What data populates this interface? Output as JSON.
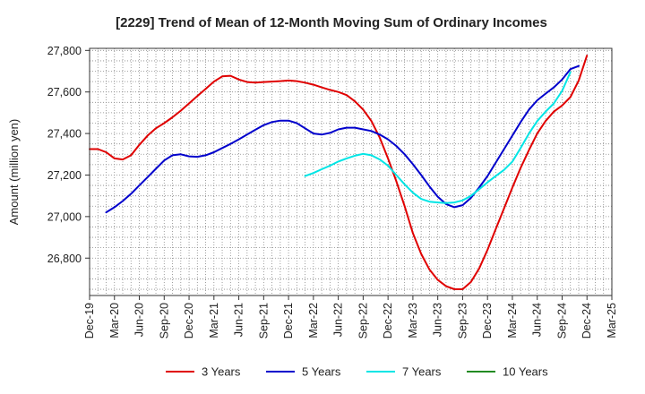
{
  "chart_data": {
    "type": "line",
    "title": "[2229]  Trend of Mean of 12-Month Moving Sum of Ordinary Incomes",
    "xlabel": "",
    "ylabel": "Amount (million yen)",
    "ylim": [
      26620,
      27810
    ],
    "yticks": [
      26800,
      27000,
      27200,
      27400,
      27600,
      27800
    ],
    "ytick_labels": [
      "26,800",
      "27,000",
      "27,200",
      "27,400",
      "27,600",
      "27,800"
    ],
    "x_start": "Dec-19",
    "x_range": [
      0,
      63
    ],
    "xticks": [
      0,
      3,
      6,
      9,
      12,
      15,
      18,
      21,
      24,
      27,
      30,
      33,
      36,
      39,
      42,
      45,
      48,
      51,
      54,
      57,
      60,
      63
    ],
    "xtick_labels": [
      "Dec-19",
      "Mar-20",
      "Jun-20",
      "Sep-20",
      "Dec-20",
      "Mar-21",
      "Jun-21",
      "Sep-21",
      "Dec-21",
      "Mar-22",
      "Jun-22",
      "Sep-22",
      "Dec-22",
      "Mar-23",
      "Jun-23",
      "Sep-23",
      "Dec-23",
      "Mar-24",
      "Jun-24",
      "Sep-24",
      "Dec-24",
      "Mar-25"
    ],
    "grid": true,
    "legend_position": "bottom",
    "series": [
      {
        "name": "3 Years",
        "color": "#e00000",
        "x_start": 0,
        "values": [
          27325,
          27325,
          27310,
          27280,
          27275,
          27295,
          27345,
          27390,
          27425,
          27450,
          27478,
          27510,
          27545,
          27580,
          27615,
          27650,
          27675,
          27678,
          27660,
          27648,
          27645,
          27648,
          27650,
          27652,
          27655,
          27652,
          27645,
          27635,
          27622,
          27610,
          27600,
          27585,
          27555,
          27515,
          27460,
          27380,
          27280,
          27170,
          27050,
          26920,
          26820,
          26745,
          26695,
          26665,
          26650,
          26650,
          26685,
          26750,
          26840,
          26940,
          27040,
          27140,
          27235,
          27320,
          27400,
          27460,
          27505,
          27535,
          27575,
          27655,
          27775
        ]
      },
      {
        "name": "5 Years",
        "color": "#0000cc",
        "x_start": 2,
        "values": [
          27020,
          27045,
          27075,
          27110,
          27150,
          27190,
          27230,
          27270,
          27295,
          27300,
          27290,
          27288,
          27295,
          27310,
          27330,
          27350,
          27372,
          27395,
          27418,
          27440,
          27455,
          27462,
          27462,
          27450,
          27425,
          27400,
          27395,
          27403,
          27420,
          27428,
          27428,
          27420,
          27412,
          27395,
          27372,
          27340,
          27300,
          27252,
          27200,
          27145,
          27095,
          27060,
          27045,
          27055,
          27090,
          27140,
          27195,
          27260,
          27325,
          27390,
          27455,
          27515,
          27560,
          27592,
          27622,
          27660,
          27710,
          27725
        ]
      },
      {
        "name": "7 Years",
        "color": "#00e5e5",
        "x_start": 26,
        "values": [
          27195,
          27210,
          27228,
          27245,
          27265,
          27280,
          27293,
          27302,
          27295,
          27275,
          27245,
          27200,
          27155,
          27115,
          27085,
          27072,
          27068,
          27065,
          27068,
          27078,
          27100,
          27132,
          27165,
          27195,
          27225,
          27265,
          27330,
          27400,
          27460,
          27505,
          27545,
          27605,
          27695
        ]
      },
      {
        "name": "10 Years",
        "color": "#228b22",
        "x_start": 0,
        "values": []
      }
    ]
  }
}
